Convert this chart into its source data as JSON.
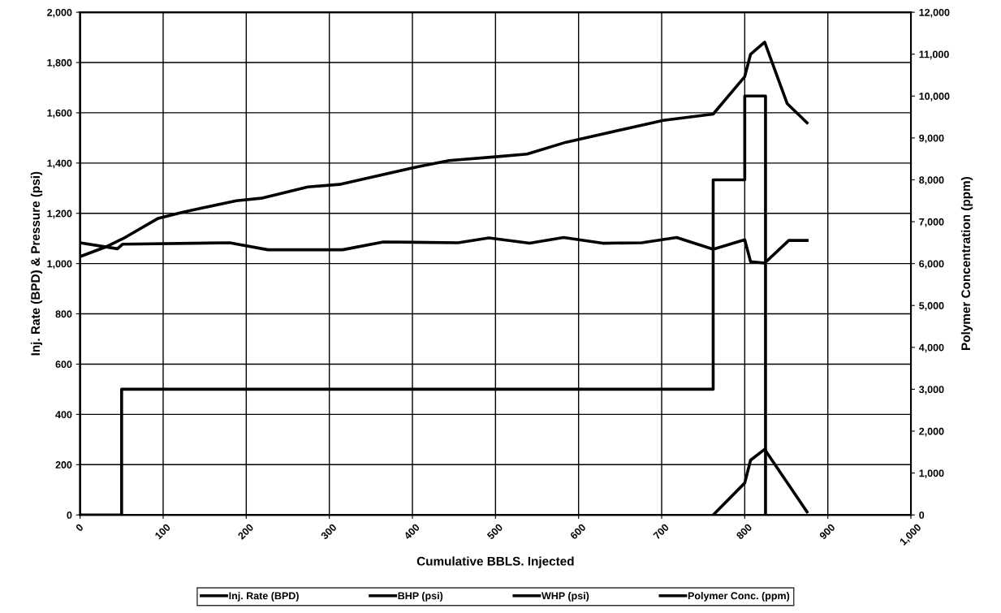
{
  "chart_data": {
    "type": "line",
    "xlabel": "Cumulative BBLS. Injected",
    "ylabel": "Inj. Rate (BPD) & Pressure (psi)",
    "y2label": "Polymer Concentration (ppm)",
    "xlim": [
      0,
      1000
    ],
    "xticks": [
      0,
      {
        "value": 100,
        "label": "100"
      },
      {
        "value": 200,
        "label": "200"
      },
      {
        "value": 300,
        "label": "300"
      },
      {
        "value": 400,
        "label": "400"
      },
      {
        "value": 500,
        "label": "500"
      },
      {
        "value": 600,
        "label": "600"
      },
      {
        "value": 700,
        "label": "700"
      },
      {
        "value": 800,
        "label": "800"
      },
      {
        "value": 900,
        "label": "900"
      },
      {
        "value": 1000,
        "label": "1,000"
      }
    ],
    "ylim": [
      0,
      2000
    ],
    "yticks": [
      0,
      200,
      400,
      600,
      800,
      {
        "value": 1000,
        "label": "1,000"
      },
      {
        "value": 1200,
        "label": "1,200"
      },
      {
        "value": 1400,
        "label": "1,400"
      },
      {
        "value": 1600,
        "label": "1,600"
      },
      {
        "value": 1800,
        "label": "1,800"
      },
      {
        "value": 2000,
        "label": "2,000"
      }
    ],
    "y2lim": [
      0,
      12000
    ],
    "y2ticks": [
      0,
      {
        "value": 1000,
        "label": "1,000"
      },
      {
        "value": 2000,
        "label": "2,000"
      },
      {
        "value": 3000,
        "label": "3,000"
      },
      {
        "value": 4000,
        "label": "4,000"
      },
      {
        "value": 5000,
        "label": "5,000"
      },
      {
        "value": 6000,
        "label": "6,000"
      },
      {
        "value": 7000,
        "label": "7,000"
      },
      {
        "value": 8000,
        "label": "8,000"
      },
      {
        "value": 9000,
        "label": "9,000"
      },
      {
        "value": 10000,
        "label": "10,000"
      },
      {
        "value": 11000,
        "label": "11,000"
      },
      {
        "value": 12000,
        "label": "12,000"
      }
    ],
    "grid": true,
    "legend": "bottom",
    "line_style": "solid",
    "marker": "none",
    "series": [
      {
        "name": "Inj. Rate (BPD)",
        "color": "#000000",
        "x": [
          0,
          45,
          51,
          180,
          226,
          316,
          365,
          455,
          492,
          541,
          582,
          629,
          676,
          718,
          762,
          800,
          807,
          824,
          853,
          875
        ],
        "values": [
          1083,
          1059,
          1077,
          1083,
          1055,
          1055,
          1086,
          1083,
          1102,
          1081,
          1104,
          1081,
          1083,
          1104,
          1057,
          1095,
          1008,
          1002,
          1092,
          1092
        ]
      },
      {
        "name": "BHP (psi)",
        "color": "#000000",
        "x": [
          0,
          30,
          52,
          94,
          124,
          188,
          218,
          274,
          312,
          406,
          444,
          500,
          538,
          585,
          702,
          762,
          800,
          807,
          824,
          851,
          875
        ],
        "values": [
          1028,
          1065,
          1100,
          1180,
          1205,
          1250,
          1260,
          1305,
          1315,
          1385,
          1410,
          1425,
          1436,
          1483,
          1570,
          1595,
          1744,
          1833,
          1881,
          1637,
          1560
        ]
      },
      {
        "name": "WHP (psi)",
        "color": "#000000",
        "x": [
          762,
          800,
          807,
          824,
          875
        ],
        "values": [
          0,
          127,
          218,
          261,
          12
        ]
      },
      {
        "name": "Polymer Conc. (ppm)",
        "color": "#000000",
        "axis": "y2",
        "x": [
          0,
          50,
          50,
          762,
          762,
          800,
          800,
          825,
          825
        ],
        "values": [
          0,
          0,
          3000,
          3000,
          8000,
          8000,
          10000,
          10000,
          0
        ]
      }
    ]
  }
}
